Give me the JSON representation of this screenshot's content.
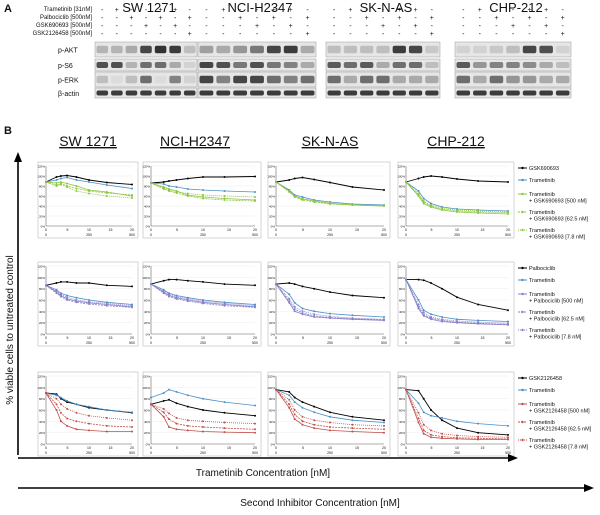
{
  "panel_a": {
    "label": "A",
    "treatments": [
      {
        "name": "Trametinib [31nM]",
        "signs": [
          "-",
          "+",
          "-",
          "-",
          "+",
          "+",
          "-"
        ]
      },
      {
        "name": "Palbociclib [500nM]",
        "signs": [
          "-",
          "-",
          "+",
          "-",
          "+",
          "-",
          "+"
        ]
      },
      {
        "name": "GSK690693 [500nM]",
        "signs": [
          "-",
          "-",
          "-",
          "+",
          "-",
          "+",
          "-"
        ]
      },
      {
        "name": "GSK2126458 [500nM]",
        "signs": [
          "-",
          "-",
          "-",
          "-",
          "-",
          "-",
          "+"
        ]
      }
    ],
    "cell_lines": [
      "SW 1271",
      "NCI-H2347",
      "SK-N-AS",
      "CHP-212"
    ],
    "proteins": [
      "p-AKT",
      "p-S6",
      "p-ERK",
      "β-actin"
    ],
    "band_intensity": [
      [
        [
          0.25,
          0.25,
          0.3,
          0.8,
          0.9,
          0.85,
          0.2
        ],
        [
          0.75,
          0.75,
          0.25,
          0.6,
          0.6,
          0.3,
          0.1
        ],
        [
          0.2,
          0.05,
          0.2,
          0.6,
          0.05,
          0.5,
          0.1
        ],
        [
          0.85,
          0.85,
          0.85,
          0.85,
          0.85,
          0.85,
          0.85
        ]
      ],
      [
        [
          0.35,
          0.3,
          0.4,
          0.55,
          0.8,
          0.85,
          0.3
        ],
        [
          0.8,
          0.75,
          0.55,
          0.75,
          0.55,
          0.5,
          0.3
        ],
        [
          0.8,
          0.5,
          0.8,
          0.8,
          0.6,
          0.5,
          0.6
        ],
        [
          0.85,
          0.85,
          0.85,
          0.85,
          0.85,
          0.85,
          0.85
        ]
      ],
      [
        [
          0.2,
          0.2,
          0.2,
          0.2,
          0.85,
          0.8,
          0.15
        ],
        [
          0.7,
          0.6,
          0.7,
          0.3,
          0.6,
          0.6,
          0.2
        ],
        [
          0.6,
          0.3,
          0.6,
          0.6,
          0.3,
          0.3,
          0.3
        ],
        [
          0.85,
          0.85,
          0.85,
          0.85,
          0.85,
          0.85,
          0.85
        ]
      ],
      [
        [
          0.1,
          0.1,
          0.15,
          0.2,
          0.8,
          0.75,
          0.1
        ],
        [
          0.7,
          0.4,
          0.5,
          0.5,
          0.45,
          0.3,
          0.2
        ],
        [
          0.6,
          0.3,
          0.6,
          0.4,
          0.4,
          0.3,
          0.3
        ],
        [
          0.85,
          0.85,
          0.85,
          0.85,
          0.85,
          0.85,
          0.85
        ]
      ]
    ]
  },
  "panel_b": {
    "label": "B",
    "cell_lines": [
      "SW 1271",
      "NCI-H2347",
      "SK-N-AS",
      "CHP-212"
    ],
    "y_axis_label": "% viable cells to untreated control",
    "x_axis_label_1": "Trametinib Concentration [nM]",
    "x_axis_label_2": "Second Inhibitor Concentration [nM]",
    "y_tick_labels": [
      "0%",
      "20%",
      "40%",
      "60%",
      "80%",
      "100%",
      "120%"
    ],
    "x_tick_labels_top": [
      "0",
      "5",
      "10",
      "15",
      "20"
    ],
    "x_tick_labels_bottom": [
      "0",
      "250",
      "500"
    ],
    "legends": [
      [
        "GSK690693",
        "Trametinib",
        "Trametinib\n+ GSK690693 [500 nM]",
        "Trametinib\n+ GSK690693 [62.5 nM]",
        "Trametinib\n+ GSK690693 [7.8 nM]"
      ],
      [
        "Palbociclib",
        "Trametinib",
        "Trametinib\n+ Palbociclib [500 nM]",
        "Trametinib\n+ Palbociclib [62.5 nM]",
        "Trametinib\n+ Palbociclib [7.8 nM]"
      ],
      [
        "GSK2126458",
        "Trametinib",
        "Trametinib\n+ GSK2126458 [500 nM]",
        "Trametinib\n+ GSK2126458 [62.5 nM]",
        "Trametinib\n+ GSK2126458 [7.8 nM]"
      ]
    ],
    "colors": {
      "single_inhibitor": "#000000",
      "trametinib": "#4a90c8",
      "row1_combo": "#8dc63f",
      "row2_combo": "#8a7fc8",
      "row3_combo": "#c0504d"
    }
  },
  "chart_data": {
    "type": "line",
    "x": [
      0,
      0.3,
      0.6,
      1.2,
      2.5,
      5,
      10,
      20
    ],
    "note_units": "% viable cells",
    "panels": [
      [
        {
          "single": [
            88,
            98,
            100,
            101,
            98,
            92,
            87,
            83
          ],
          "tram": [
            88,
            92,
            95,
            97,
            92,
            88,
            82,
            75
          ],
          "c500": [
            88,
            86,
            88,
            85,
            80,
            72,
            68,
            60
          ],
          "c62": [
            88,
            82,
            85,
            80,
            75,
            70,
            66,
            62
          ],
          "c8": [
            88,
            80,
            83,
            78,
            70,
            65,
            60,
            56
          ]
        },
        {
          "single": [
            86,
            88,
            90,
            92,
            95,
            98,
            98,
            99
          ],
          "tram": [
            86,
            84,
            80,
            78,
            74,
            72,
            70,
            68
          ],
          "c500": [
            86,
            78,
            74,
            70,
            62,
            58,
            55,
            52
          ],
          "c62": [
            86,
            74,
            70,
            66,
            60,
            55,
            52,
            50
          ],
          "c8": [
            86,
            76,
            72,
            68,
            65,
            62,
            60,
            58
          ]
        },
        {
          "single": [
            88,
            92,
            95,
            97,
            93,
            87,
            78,
            72
          ],
          "tram": [
            88,
            72,
            62,
            58,
            52,
            48,
            44,
            42
          ],
          "c500": [
            88,
            70,
            60,
            54,
            50,
            45,
            42,
            40
          ],
          "c62": [
            88,
            68,
            58,
            52,
            48,
            44,
            42,
            40
          ],
          "c8": [
            88,
            70,
            60,
            55,
            50,
            46,
            43,
            41
          ]
        },
        {
          "single": [
            88,
            95,
            98,
            100,
            98,
            94,
            90,
            88
          ],
          "tram": [
            88,
            70,
            55,
            45,
            38,
            34,
            32,
            30
          ],
          "c500": [
            88,
            60,
            45,
            38,
            32,
            28,
            26,
            24
          ],
          "c62": [
            88,
            62,
            48,
            40,
            34,
            30,
            28,
            27
          ],
          "c8": [
            88,
            65,
            50,
            42,
            36,
            32,
            30,
            28
          ]
        }
      ],
      [
        {
          "single": [
            86,
            90,
            92,
            92,
            90,
            90,
            86,
            84
          ],
          "tram": [
            86,
            78,
            72,
            68,
            64,
            60,
            56,
            52
          ],
          "c500": [
            86,
            74,
            68,
            62,
            58,
            55,
            52,
            48
          ],
          "c62": [
            86,
            72,
            66,
            60,
            56,
            53,
            50,
            47
          ],
          "c8": [
            86,
            76,
            70,
            65,
            60,
            57,
            54,
            50
          ]
        },
        {
          "single": [
            88,
            94,
            96,
            96,
            94,
            92,
            88,
            86
          ],
          "tram": [
            88,
            78,
            72,
            68,
            64,
            60,
            56,
            52
          ],
          "c500": [
            88,
            74,
            68,
            64,
            60,
            56,
            52,
            48
          ],
          "c62": [
            88,
            72,
            66,
            62,
            58,
            54,
            50,
            47
          ],
          "c8": [
            88,
            76,
            70,
            66,
            62,
            58,
            54,
            50
          ]
        },
        {
          "single": [
            88,
            90,
            88,
            84,
            80,
            74,
            68,
            64
          ],
          "tram": [
            88,
            70,
            55,
            45,
            40,
            36,
            33,
            30
          ],
          "c500": [
            88,
            55,
            40,
            35,
            30,
            28,
            26,
            24
          ],
          "c62": [
            88,
            58,
            44,
            37,
            32,
            29,
            27,
            25
          ],
          "c8": [
            88,
            62,
            48,
            40,
            35,
            31,
            28,
            26
          ]
        },
        {
          "single": [
            96,
            96,
            95,
            90,
            80,
            65,
            52,
            42
          ],
          "tram": [
            96,
            60,
            42,
            35,
            30,
            26,
            24,
            22
          ],
          "c500": [
            96,
            45,
            32,
            26,
            22,
            20,
            18,
            16
          ],
          "c62": [
            96,
            48,
            34,
            28,
            24,
            21,
            19,
            17
          ],
          "c8": [
            96,
            52,
            38,
            30,
            26,
            23,
            21,
            19
          ]
        }
      ],
      [
        {
          "single": [
            90,
            88,
            80,
            74,
            70,
            64,
            60,
            55
          ],
          "tram": [
            90,
            86,
            82,
            76,
            70,
            66,
            60,
            56
          ],
          "c500": [
            90,
            60,
            40,
            32,
            26,
            24,
            22,
            22
          ],
          "c62": [
            90,
            70,
            55,
            45,
            40,
            36,
            32,
            30
          ],
          "c8": [
            90,
            80,
            70,
            62,
            55,
            50,
            46,
            42
          ]
        },
        {
          "single": [
            70,
            76,
            78,
            72,
            66,
            60,
            55,
            50
          ],
          "tram": [
            82,
            90,
            96,
            92,
            86,
            80,
            74,
            68
          ],
          "c500": [
            70,
            48,
            30,
            26,
            24,
            22,
            21,
            20
          ],
          "c62": [
            70,
            56,
            44,
            36,
            32,
            30,
            28,
            26
          ],
          "c8": [
            70,
            62,
            54,
            46,
            42,
            40,
            38,
            36
          ]
        },
        {
          "single": [
            96,
            92,
            82,
            74,
            66,
            56,
            48,
            42
          ],
          "tram": [
            96,
            86,
            74,
            64,
            56,
            48,
            42,
            38
          ],
          "c500": [
            96,
            64,
            44,
            34,
            28,
            24,
            22,
            20
          ],
          "c62": [
            96,
            70,
            52,
            40,
            34,
            30,
            28,
            26
          ],
          "c8": [
            96,
            78,
            60,
            48,
            42,
            38,
            34,
            32
          ]
        },
        {
          "single": [
            96,
            94,
            80,
            60,
            42,
            28,
            20,
            16
          ],
          "tram": [
            96,
            72,
            56,
            50,
            46,
            40,
            36,
            32
          ],
          "c500": [
            96,
            38,
            18,
            12,
            10,
            9,
            8,
            8
          ],
          "c62": [
            96,
            45,
            24,
            16,
            13,
            11,
            10,
            9
          ],
          "c8": [
            96,
            55,
            34,
            24,
            18,
            15,
            13,
            12
          ]
        }
      ]
    ]
  }
}
